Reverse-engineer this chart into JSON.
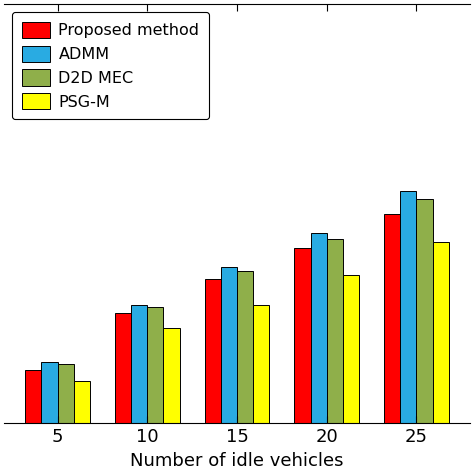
{
  "categories": [
    5,
    10,
    15,
    20,
    25
  ],
  "series": {
    "Proposed method": [
      0.28,
      0.58,
      0.76,
      0.92,
      1.1
    ],
    "ADMM": [
      0.32,
      0.62,
      0.82,
      1.0,
      1.22
    ],
    "D2D MEC": [
      0.31,
      0.61,
      0.8,
      0.97,
      1.18
    ],
    "PSG-M": [
      0.22,
      0.5,
      0.62,
      0.78,
      0.95
    ]
  },
  "colors": {
    "Proposed method": "#FF0000",
    "ADMM": "#29ABE2",
    "D2D MEC": "#8FAF4A",
    "PSG-M": "#FFFF00"
  },
  "xlabel": "Number of idle vehicles",
  "ylim": [
    0,
    2.2
  ],
  "bar_width": 0.18,
  "legend_order": [
    "Proposed method",
    "ADMM",
    "D2D MEC",
    "PSG-M"
  ],
  "background_color": "#ffffff",
  "edge_color": "#000000"
}
